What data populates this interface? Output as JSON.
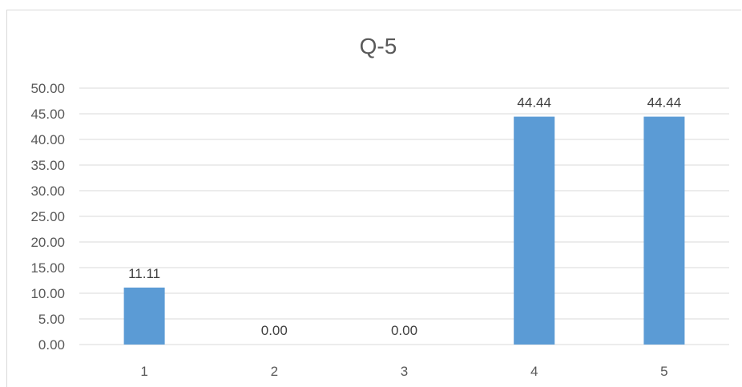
{
  "chart_data": {
    "type": "bar",
    "title": "Q-5",
    "categories": [
      "1",
      "2",
      "3",
      "4",
      "5"
    ],
    "values": [
      11.11,
      0.0,
      0.0,
      44.44,
      44.44
    ],
    "data_labels": [
      "11.11",
      "0.00",
      "0.00",
      "44.44",
      "44.44"
    ],
    "ylim": [
      0,
      50
    ],
    "yticks": [
      "0.00",
      "5.00",
      "10.00",
      "15.00",
      "20.00",
      "25.00",
      "30.00",
      "35.00",
      "40.00",
      "45.00",
      "50.00"
    ],
    "grid": true,
    "bar_color": "#5b9bd5"
  }
}
